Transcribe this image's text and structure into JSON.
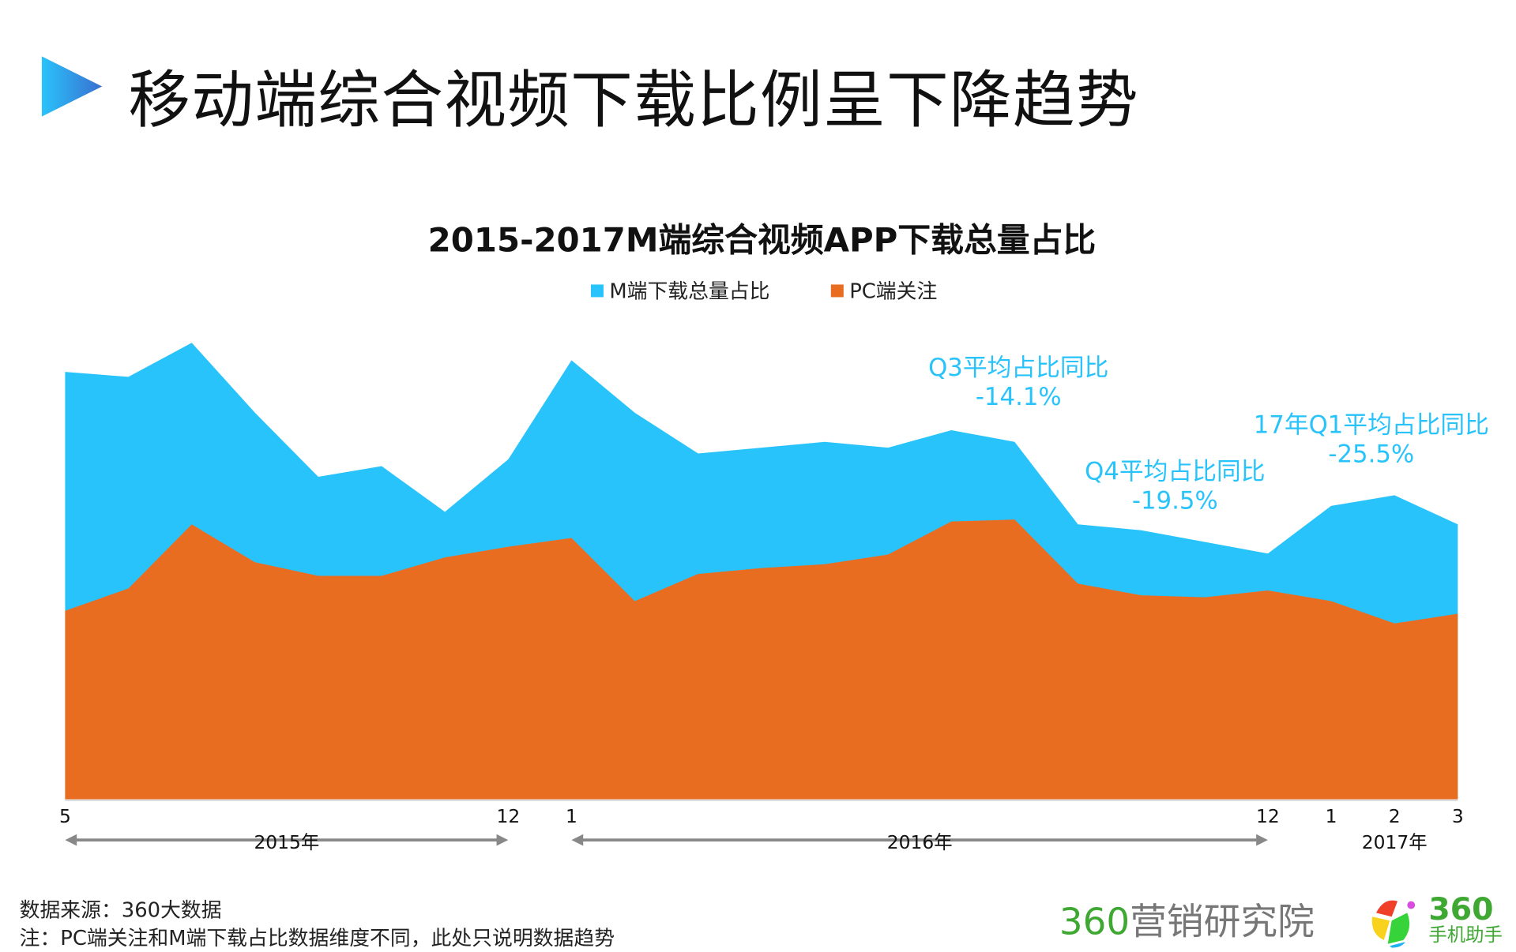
{
  "header": {
    "title": "移动端综合视频下载比例呈下降趋势",
    "triangle_icon": "play-triangle-icon"
  },
  "chart_data": {
    "type": "area",
    "title": "2015-2017M端综合视频APP下载总量占比",
    "legend_position": "top",
    "grid": false,
    "y_axis_shown": false,
    "ylim": [
      0,
      100
    ],
    "categories": [
      "5",
      "6",
      "7",
      "8",
      "9",
      "10",
      "11",
      "12",
      "1",
      "2",
      "3",
      "4",
      "5",
      "6",
      "7",
      "8",
      "9",
      "10",
      "11",
      "12",
      "1",
      "2",
      "3"
    ],
    "shown_ticks": [
      {
        "index": 0,
        "label": "5"
      },
      {
        "index": 7,
        "label": "12"
      },
      {
        "index": 8,
        "label": "1"
      },
      {
        "index": 19,
        "label": "12"
      },
      {
        "index": 20,
        "label": "1"
      },
      {
        "index": 21,
        "label": "2"
      },
      {
        "index": 22,
        "label": "3"
      }
    ],
    "year_spans": [
      {
        "label": "2015年",
        "from": 0,
        "to": 7,
        "arrow": true
      },
      {
        "label": "2016年",
        "from": 8,
        "to": 19,
        "arrow": true
      },
      {
        "label": "2017年",
        "from": 20,
        "to": 22,
        "arrow": false
      }
    ],
    "series": [
      {
        "name": "M端下载总量占比",
        "color": "#29c3fb",
        "values": [
          88,
          87,
          94,
          79.6,
          66.4,
          68.6,
          59.2,
          70,
          90.4,
          79.6,
          71.2,
          72.4,
          73.6,
          72.4,
          76,
          73.6,
          56.6,
          55.4,
          53,
          50.6,
          60.4,
          62.6,
          56.6
        ]
      },
      {
        "name": "PC端关注",
        "color": "#e96d21",
        "values": [
          38.8,
          43.4,
          56.6,
          48.8,
          46,
          46,
          49.8,
          52,
          53.8,
          40.8,
          46.4,
          47.6,
          48.4,
          50.4,
          57.2,
          57.6,
          44.4,
          42,
          41.6,
          43,
          40.8,
          36.2,
          38.2
        ]
      }
    ],
    "annotations": [
      {
        "line1": "Q3平均占比同比",
        "line2": "-14.1%"
      },
      {
        "line1": "Q4平均占比同比",
        "line2": "-19.5%"
      },
      {
        "line1": "17年Q1平均占比同比",
        "line2": "-25.5%"
      }
    ]
  },
  "footer": {
    "source": "数据来源：360大数据",
    "note": "注：PC端关注和M端下载占比数据维度不同，此处只说明数据趋势",
    "logo1": "360营销研究院",
    "logo2_top": "360",
    "logo2_bottom": "手机助手"
  }
}
